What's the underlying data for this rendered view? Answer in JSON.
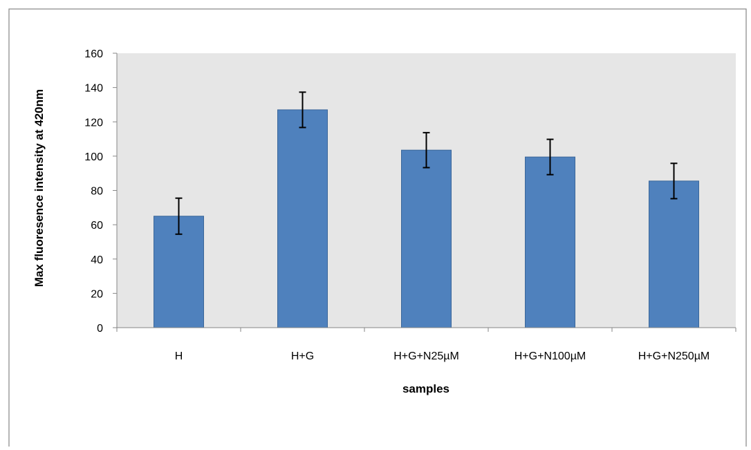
{
  "chart_data": {
    "type": "bar",
    "categories": [
      "H",
      "H+G",
      "H+G+N25µM",
      "H+G+N100µM",
      "H+G+N250µM"
    ],
    "series": [
      {
        "values": [
          65,
          127,
          103.5,
          99.5,
          85.5
        ],
        "error": [
          10.5,
          10.3,
          10.2,
          10.3,
          10.3
        ]
      }
    ],
    "xlabel": "samples",
    "ylabel": "Max fluoresence intensity at 420nm",
    "ylim": [
      0,
      160
    ],
    "yticks": [
      0,
      20,
      40,
      60,
      80,
      100,
      120,
      140,
      160
    ],
    "grid": false,
    "legend": "none",
    "colors": {
      "bar_fill": "#4F81BD",
      "bar_stroke": "#3A6699",
      "plot_background": "#E6E6E6",
      "axis": "#868686",
      "error_bar": "#000000",
      "frame": "#868686"
    }
  }
}
